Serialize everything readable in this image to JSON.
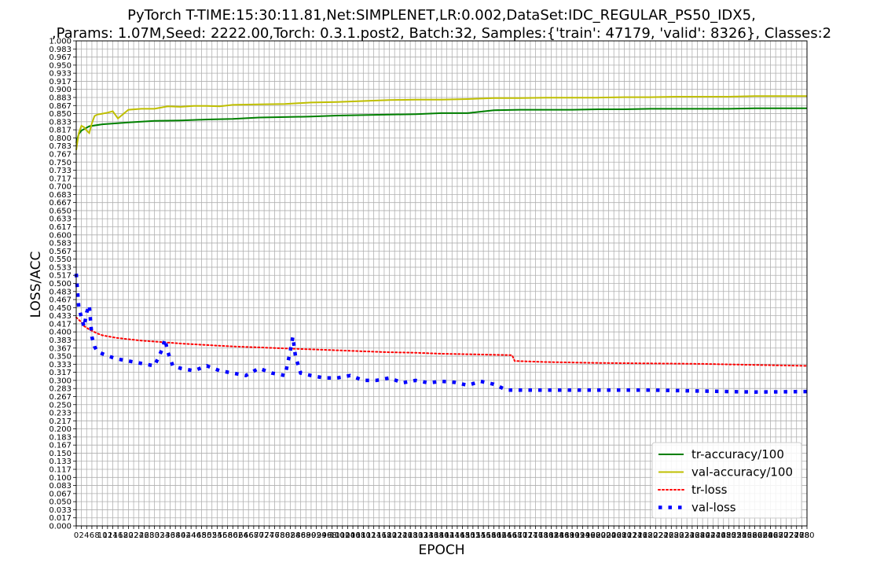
{
  "chart_data": {
    "type": "line",
    "title_line1": "PyTorch T-TIME:15:30:11.81,Net:SIMPLENET,LR:0.002,DataSet:IDC_REGULAR_PS50_IDX5,",
    "title_line2": ",Params: 1.07M,Seed: 2222.00,Torch: 0.3.1.post2, Batch:32, Samples:{'train': 47179, 'valid': 8326}, Classes:2",
    "xlabel": "EPOCH",
    "ylabel": "LOSS/ACC",
    "xlim": [
      0,
      280
    ],
    "ylim": [
      0.0,
      1.0
    ],
    "x_tick_step": 2,
    "y_tick_step": 0.0167,
    "grid": true,
    "legend_position": "bottom-right",
    "colors": {
      "tr_accuracy": "#008000",
      "val_accuracy": "#bfbf00",
      "tr_loss": "#ff0000",
      "val_loss": "#0000ff",
      "grid": "#b0b0b0"
    },
    "series": [
      {
        "name": "tr-accuracy/100",
        "key": "tr_accuracy",
        "style": "solid",
        "x": [
          0,
          1,
          2,
          3,
          5,
          10,
          20,
          30,
          40,
          50,
          60,
          70,
          80,
          90,
          100,
          110,
          120,
          130,
          140,
          150,
          160,
          170,
          180,
          190,
          200,
          210,
          220,
          230,
          240,
          250,
          260,
          270,
          280
        ],
        "values": [
          0.79,
          0.808,
          0.815,
          0.818,
          0.824,
          0.828,
          0.832,
          0.835,
          0.836,
          0.838,
          0.839,
          0.842,
          0.843,
          0.844,
          0.846,
          0.847,
          0.848,
          0.849,
          0.851,
          0.851,
          0.857,
          0.858,
          0.858,
          0.858,
          0.859,
          0.859,
          0.86,
          0.86,
          0.86,
          0.86,
          0.861,
          0.861,
          0.861
        ]
      },
      {
        "name": "val-accuracy/100",
        "key": "val_accuracy",
        "style": "solid",
        "x": [
          0,
          1,
          2,
          3,
          4,
          5,
          6,
          7,
          8,
          10,
          12,
          14,
          16,
          20,
          25,
          30,
          35,
          40,
          45,
          50,
          55,
          60,
          70,
          80,
          90,
          100,
          110,
          120,
          130,
          140,
          150,
          160,
          170,
          180,
          190,
          200,
          210,
          220,
          230,
          240,
          250,
          260,
          270,
          280
        ],
        "values": [
          0.775,
          0.81,
          0.825,
          0.822,
          0.815,
          0.81,
          0.83,
          0.845,
          0.848,
          0.85,
          0.852,
          0.855,
          0.84,
          0.858,
          0.86,
          0.86,
          0.865,
          0.864,
          0.866,
          0.866,
          0.865,
          0.868,
          0.869,
          0.87,
          0.873,
          0.874,
          0.876,
          0.878,
          0.879,
          0.879,
          0.88,
          0.882,
          0.882,
          0.883,
          0.883,
          0.883,
          0.884,
          0.884,
          0.885,
          0.885,
          0.885,
          0.886,
          0.886,
          0.886
        ]
      },
      {
        "name": "tr-loss",
        "key": "tr_loss",
        "style": "dotted",
        "x": [
          0,
          1,
          2,
          3,
          5,
          8,
          10,
          15,
          20,
          25,
          30,
          40,
          50,
          60,
          70,
          80,
          90,
          100,
          110,
          120,
          130,
          140,
          150,
          167,
          168,
          180,
          200,
          220,
          240,
          260,
          280
        ],
        "values": [
          0.43,
          0.425,
          0.42,
          0.412,
          0.405,
          0.397,
          0.393,
          0.388,
          0.385,
          0.382,
          0.38,
          0.376,
          0.373,
          0.37,
          0.368,
          0.366,
          0.364,
          0.362,
          0.36,
          0.358,
          0.357,
          0.355,
          0.354,
          0.352,
          0.34,
          0.338,
          0.336,
          0.335,
          0.334,
          0.332,
          0.33
        ]
      },
      {
        "name": "val-loss",
        "key": "val_loss",
        "style": "dotted-thick",
        "x": [
          0,
          1,
          2,
          3,
          4,
          5,
          6,
          7,
          8,
          10,
          15,
          20,
          25,
          30,
          33,
          34,
          35,
          37,
          40,
          45,
          50,
          55,
          60,
          65,
          70,
          75,
          80,
          82,
          83,
          84,
          86,
          90,
          95,
          100,
          105,
          110,
          115,
          120,
          125,
          130,
          135,
          140,
          145,
          150,
          155,
          160,
          165,
          170,
          180,
          200,
          220,
          240,
          260,
          280
        ],
        "values": [
          0.52,
          0.45,
          0.43,
          0.41,
          0.44,
          0.455,
          0.39,
          0.37,
          0.36,
          0.355,
          0.345,
          0.34,
          0.335,
          0.33,
          0.365,
          0.385,
          0.36,
          0.33,
          0.325,
          0.32,
          0.33,
          0.32,
          0.315,
          0.31,
          0.325,
          0.315,
          0.31,
          0.36,
          0.39,
          0.35,
          0.315,
          0.31,
          0.305,
          0.305,
          0.31,
          0.3,
          0.3,
          0.305,
          0.295,
          0.3,
          0.295,
          0.298,
          0.296,
          0.29,
          0.298,
          0.292,
          0.28,
          0.28,
          0.28,
          0.28,
          0.28,
          0.278,
          0.276,
          0.277
        ]
      }
    ]
  }
}
